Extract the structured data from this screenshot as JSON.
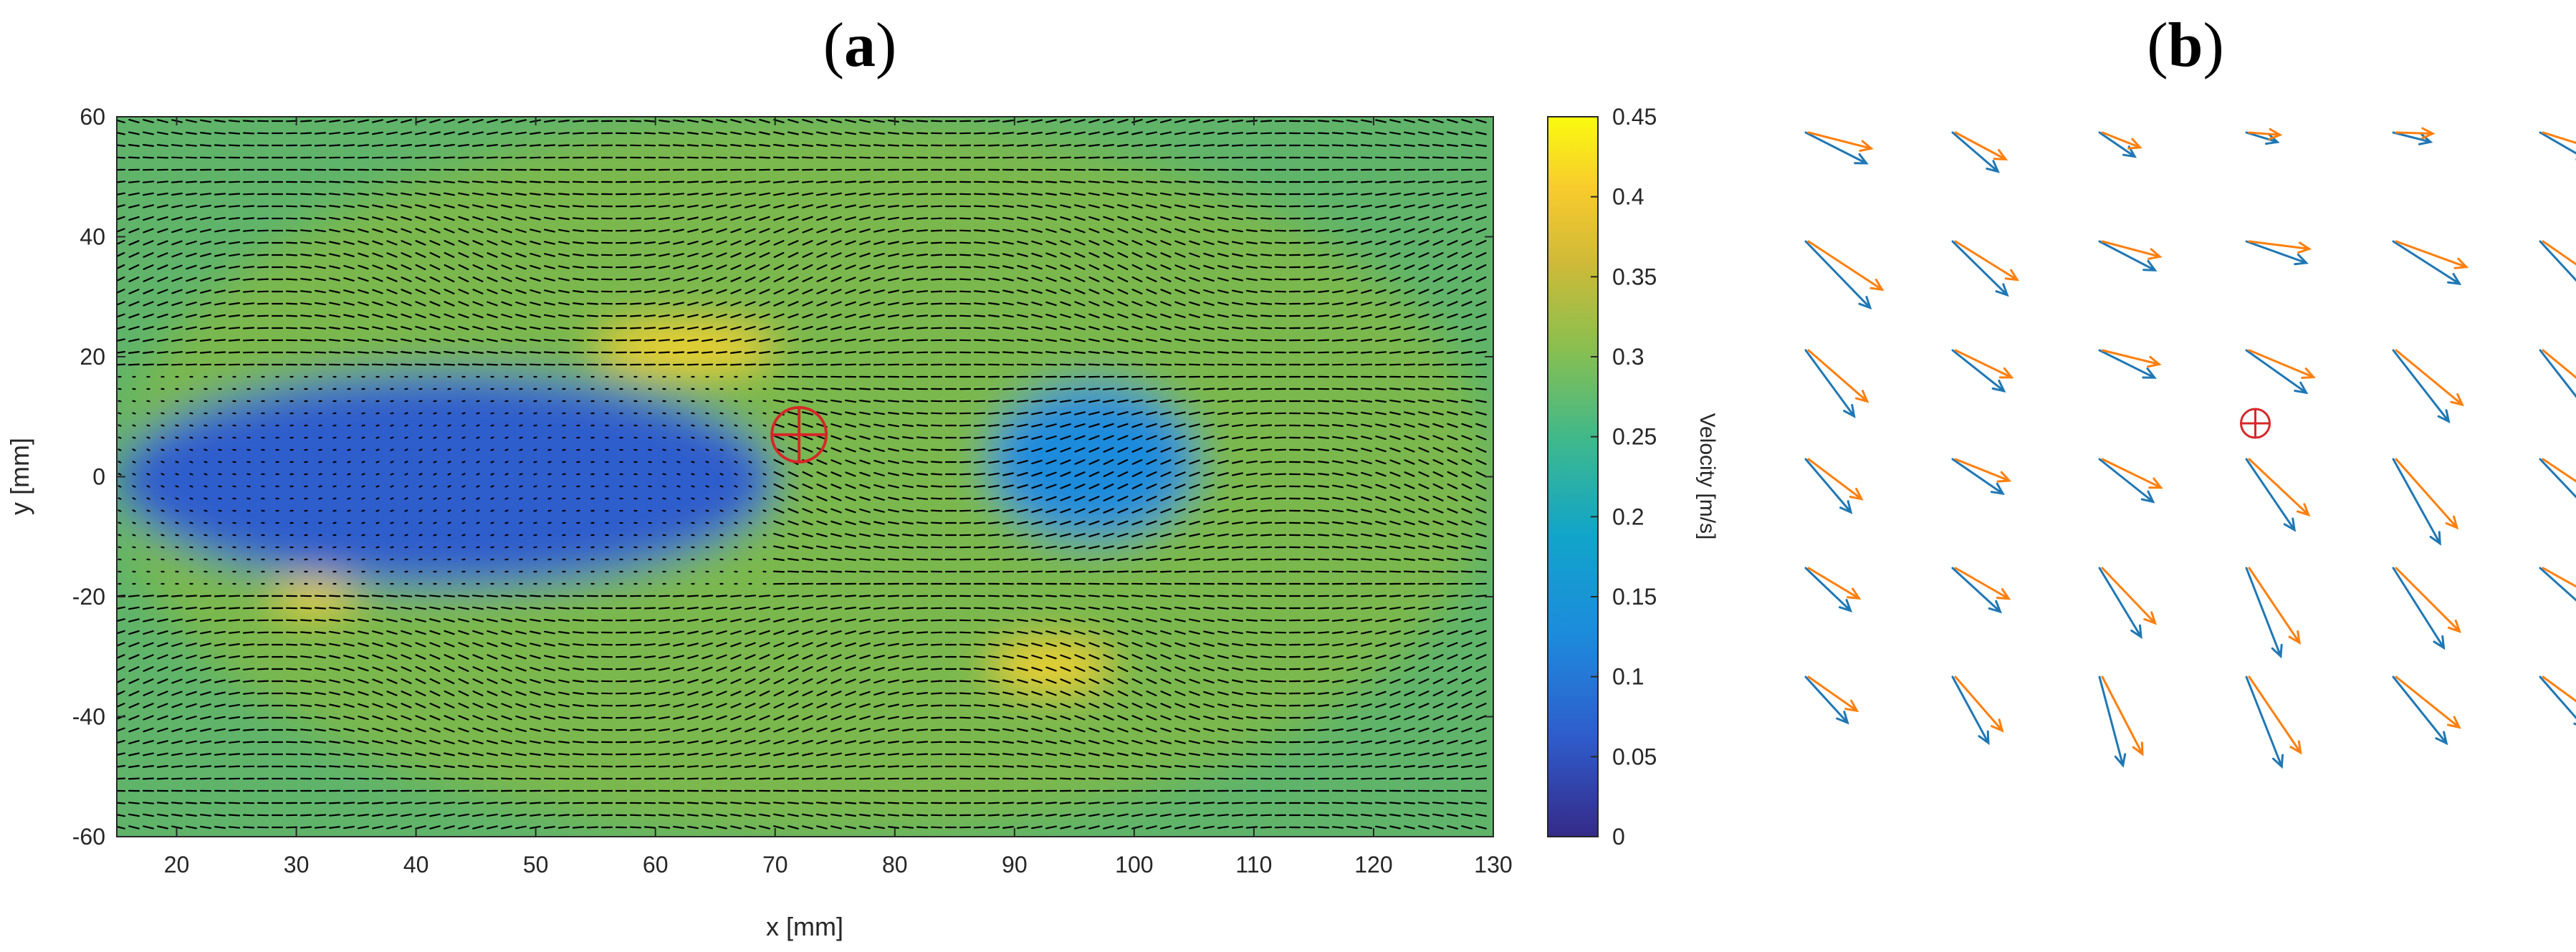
{
  "panels": [
    {
      "label_open": "(",
      "label_letter": "a",
      "label_close": ")"
    },
    {
      "label_open": "(",
      "label_letter": "b",
      "label_close": ")"
    }
  ],
  "colors": {
    "grid_arrow": "#000000",
    "marker": "#d62728",
    "series_blue": "#1f77b4",
    "series_orange": "#ff7f0e",
    "colormap": [
      "#352a87",
      "#2f5dcc",
      "#1d8bdc",
      "#1aa8a6",
      "#7ab84e",
      "#c9bb36",
      "#f9d526",
      "#f9fb0e"
    ]
  },
  "chart_data": [
    {
      "type": "heatmap",
      "subtype": "velocity vector field over velocity-magnitude colormap",
      "xlabel": "x [mm]",
      "ylabel": "y [mm]",
      "xlim": [
        15,
        130
      ],
      "ylim": [
        -60,
        60
      ],
      "x_ticks": [
        20,
        30,
        40,
        50,
        60,
        70,
        80,
        90,
        100,
        110,
        120,
        130
      ],
      "y_ticks": [
        -60,
        -40,
        -20,
        0,
        20,
        40,
        60
      ],
      "colorbar": {
        "label": "Velocity [m/s]",
        "range": [
          0,
          0.45
        ],
        "ticks": [
          "0",
          "0.05",
          "0.1",
          "0.15",
          "0.2",
          "0.25",
          "0.3",
          "0.35",
          "0.4",
          "0.45"
        ],
        "colormap": "parula"
      },
      "marker": {
        "type": "crosshair-circle",
        "x": 72,
        "y": 7
      },
      "regions": [
        {
          "description": "low-velocity wake",
          "x_range": [
            15,
            70
          ],
          "y_range": [
            -18,
            17
          ],
          "velocity": 0.05
        },
        {
          "description": "low-velocity region",
          "x_range": [
            88,
            105
          ],
          "y_range": [
            -10,
            15
          ],
          "velocity": 0.1
        },
        {
          "description": "high-velocity shear layer",
          "x_range": [
            55,
            70
          ],
          "y_range": [
            18,
            25
          ],
          "velocity": 0.38
        },
        {
          "description": "high-velocity shear layer",
          "x_range": [
            88,
            98
          ],
          "y_range": [
            -35,
            -28
          ],
          "velocity": 0.38
        },
        {
          "description": "high-velocity patch",
          "x_range": [
            28,
            35
          ],
          "y_range": [
            -22,
            -18
          ],
          "velocity": 0.38
        },
        {
          "description": "free stream",
          "x_range": [
            15,
            130
          ],
          "y_range": [
            -60,
            60
          ],
          "velocity": 0.28
        }
      ],
      "grid": false
    },
    {
      "type": "scatter",
      "subtype": "quiver comparison of two vector fields (zoom around marker)",
      "series": [
        {
          "color": "#1f77b4"
        },
        {
          "color": "#ff7f0e"
        }
      ],
      "marker": {
        "type": "crosshair-circle",
        "col": 3.5,
        "row": 3
      },
      "vector_rows": 6,
      "vector_cols": 7,
      "axes_visible": false
    }
  ]
}
